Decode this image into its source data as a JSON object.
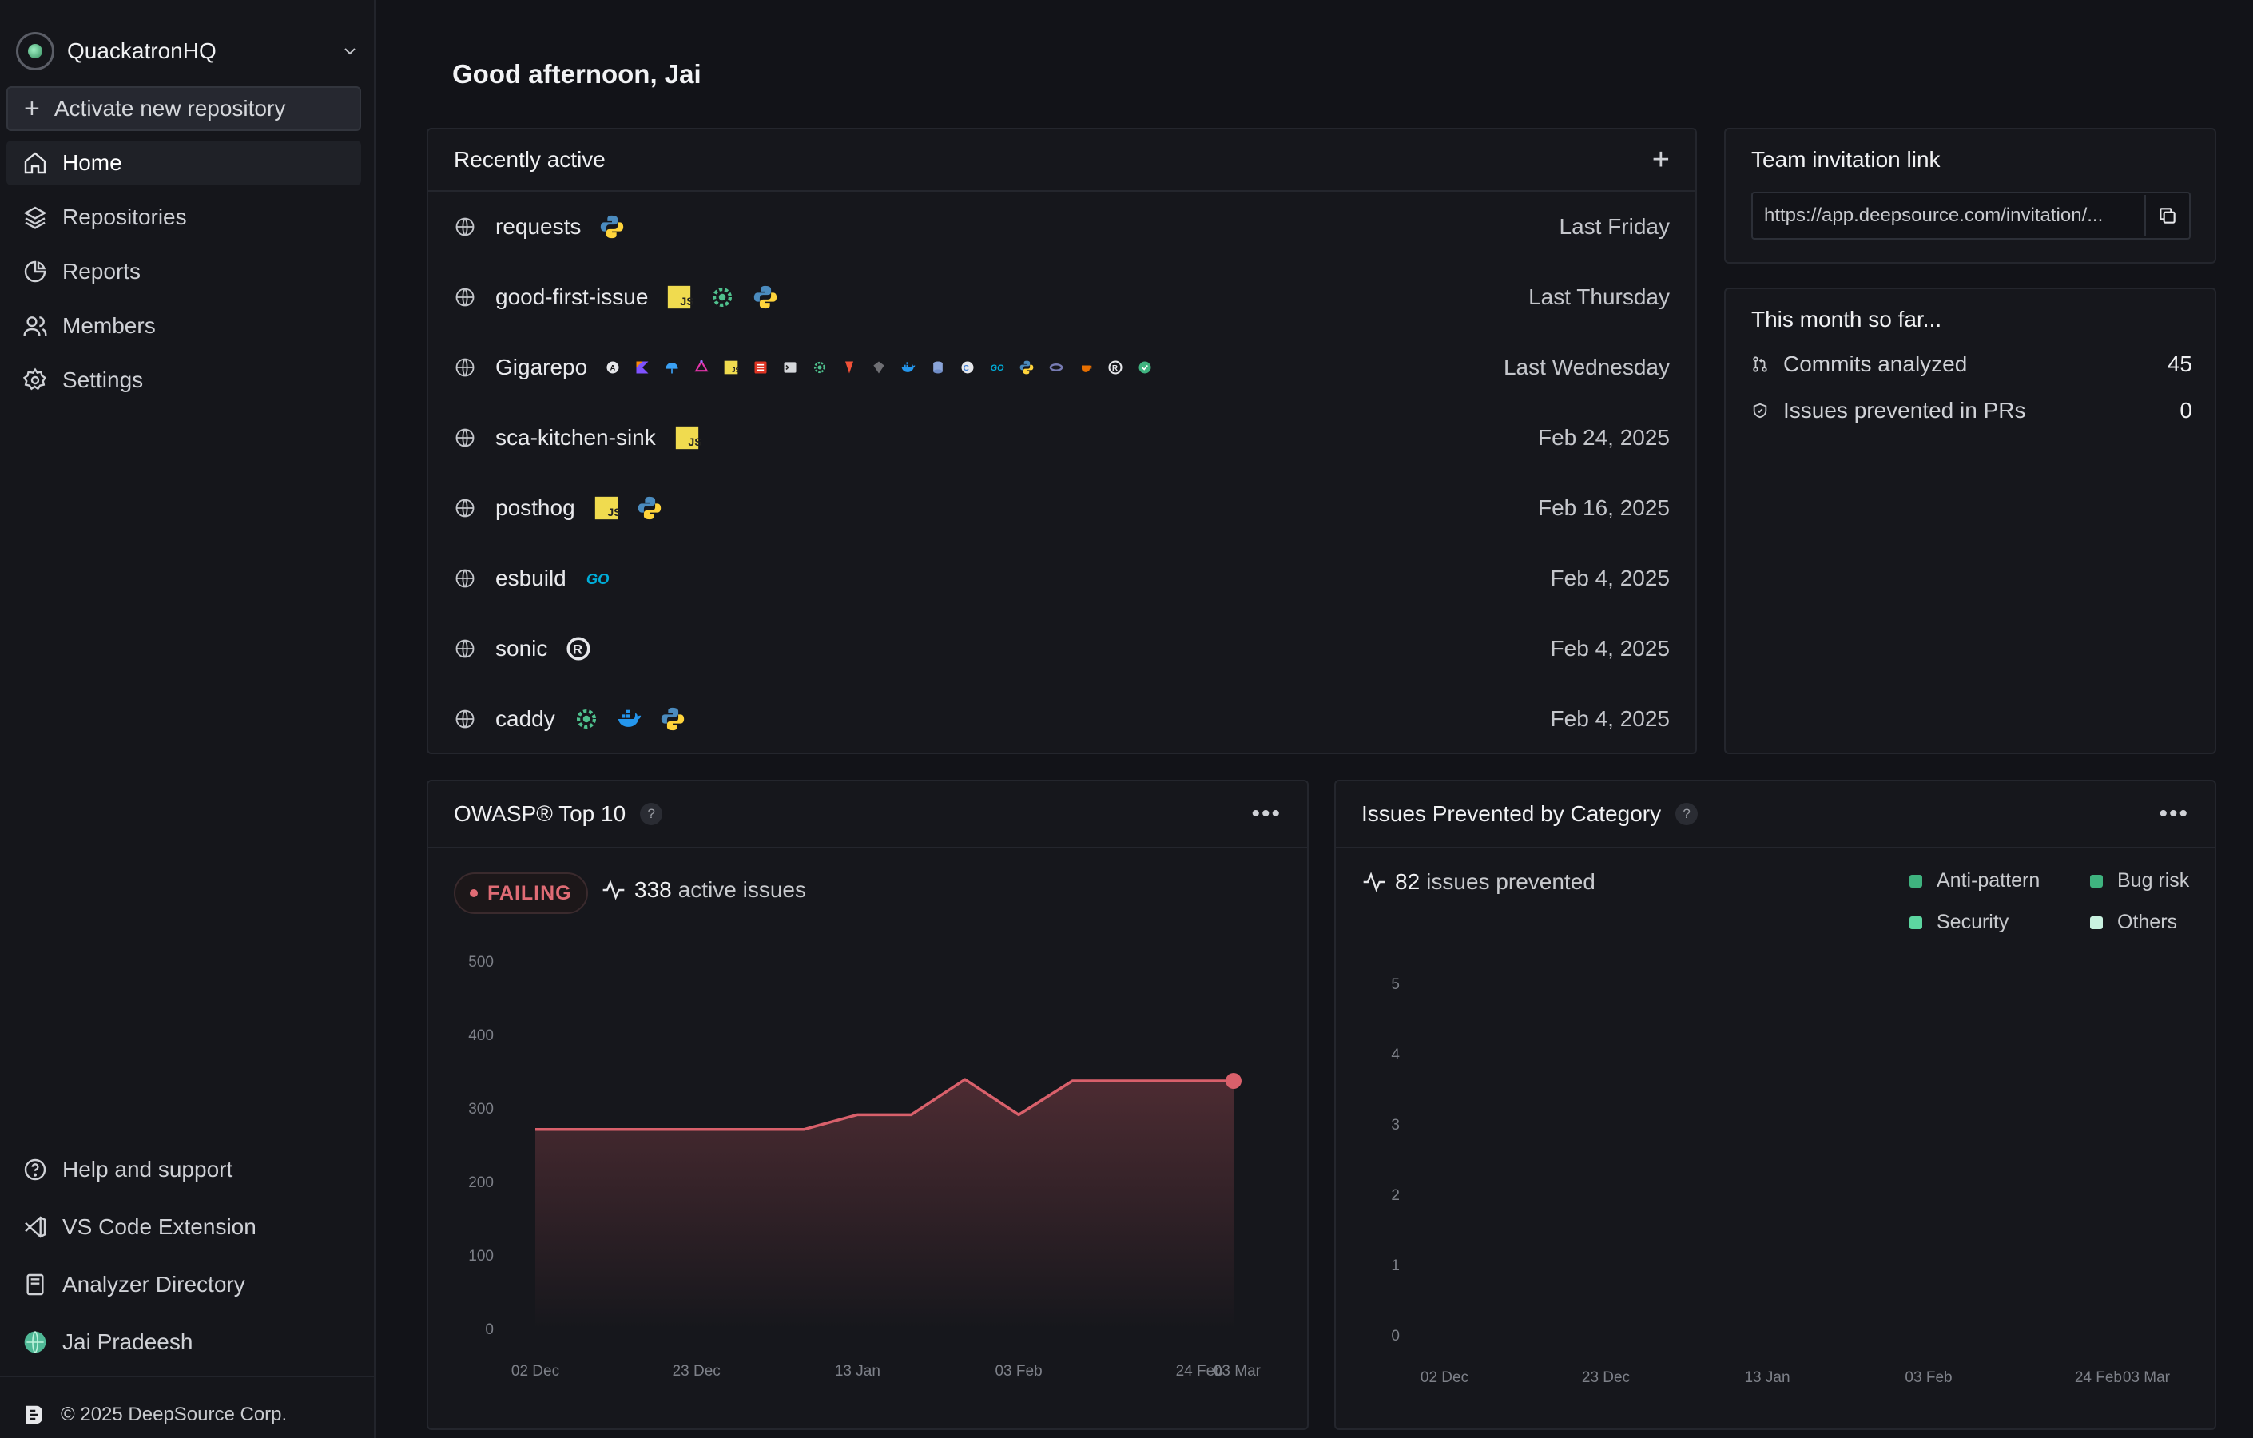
{
  "sidebar": {
    "org_name": "QuackatronHQ",
    "activate_label": "Activate new repository",
    "nav": [
      {
        "label": "Home",
        "icon": "home-icon"
      },
      {
        "label": "Repositories",
        "icon": "layers-icon"
      },
      {
        "label": "Reports",
        "icon": "pie-chart-icon"
      },
      {
        "label": "Members",
        "icon": "users-icon"
      },
      {
        "label": "Settings",
        "icon": "gear-icon"
      }
    ],
    "bottom_nav": [
      {
        "label": "Help and support",
        "icon": "help-circle-icon"
      },
      {
        "label": "VS Code Extension",
        "icon": "vscode-icon"
      },
      {
        "label": "Analyzer Directory",
        "icon": "book-icon"
      },
      {
        "label": "Jai Pradeesh",
        "icon": "user-avatar-icon"
      }
    ],
    "copyright": "© 2025 DeepSource Corp."
  },
  "greeting": "Good afternoon, Jai",
  "recent": {
    "title": "Recently active",
    "repos": [
      {
        "name": "requests",
        "date": "Last Friday",
        "langs": [
          "python"
        ]
      },
      {
        "name": "good-first-issue",
        "date": "Last Thursday",
        "langs": [
          "javascript",
          "secrets",
          "python"
        ]
      },
      {
        "name": "Gigarepo",
        "date": "Last Wednesday",
        "langs": [
          "ansible",
          "kotlin",
          "terraform",
          "graphql",
          "javascript",
          "scala",
          "shell",
          "secrets",
          "swift",
          "ruby",
          "docker",
          "sql",
          "csharp",
          "go",
          "python",
          "php",
          "java",
          "rust",
          "test-coverage"
        ]
      },
      {
        "name": "sca-kitchen-sink",
        "date": "Feb 24, 2025",
        "langs": [
          "javascript"
        ]
      },
      {
        "name": "posthog",
        "date": "Feb 16, 2025",
        "langs": [
          "javascript",
          "python"
        ]
      },
      {
        "name": "esbuild",
        "date": "Feb 4, 2025",
        "langs": [
          "go"
        ]
      },
      {
        "name": "sonic",
        "date": "Feb 4, 2025",
        "langs": [
          "rust"
        ]
      },
      {
        "name": "caddy",
        "date": "Feb 4, 2025",
        "langs": [
          "secrets",
          "docker",
          "python"
        ]
      }
    ]
  },
  "team": {
    "title": "Team invitation link",
    "link": "https://app.deepsource.com/invitation/..."
  },
  "month": {
    "title": "This month so far...",
    "stats": [
      {
        "label": "Commits analyzed",
        "value": "45",
        "icon": "git-pull-request-icon"
      },
      {
        "label": "Issues prevented in PRs",
        "value": "0",
        "icon": "shield-icon"
      }
    ]
  },
  "owasp": {
    "title": "OWASP® Top 10",
    "help": "?",
    "status": "FAILING",
    "active_count": "338",
    "active_label": "active issues"
  },
  "issues_prevented": {
    "title": "Issues Prevented by Category",
    "help": "?",
    "count": "82",
    "count_label": "issues prevented",
    "legend": [
      {
        "label": "Anti-pattern",
        "color": "#3fb37f"
      },
      {
        "label": "Bug risk",
        "color": "#3fb37f"
      },
      {
        "label": "Security",
        "color": "#5cd6a0"
      },
      {
        "label": "Others",
        "color": "#c9f2e0"
      }
    ]
  },
  "chart_data": [
    {
      "type": "area",
      "x": [
        "02 Dec",
        "09 Dec",
        "16 Dec",
        "23 Dec",
        "30 Dec",
        "06 Jan",
        "13 Jan",
        "20 Jan",
        "27 Jan",
        "03 Feb",
        "10 Feb",
        "17 Feb",
        "24 Feb",
        "03 Mar"
      ],
      "x_tick_labels": [
        "02 Dec",
        "23 Dec",
        "13 Jan",
        "03 Feb",
        "24 Feb",
        "03 Mar"
      ],
      "series": [
        {
          "values": [
            272,
            272,
            272,
            272,
            272,
            272,
            292,
            292,
            340,
            292,
            338,
            338,
            338,
            338
          ],
          "color": "#d9606b"
        }
      ],
      "ylim": [
        0,
        500
      ],
      "yticks": [
        0,
        100,
        200,
        300,
        400,
        500
      ],
      "grid": false
    },
    {
      "type": "bar",
      "x_tick_labels": [
        "02 Dec",
        "23 Dec",
        "13 Jan",
        "03 Feb",
        "24 Feb",
        "03 Mar"
      ],
      "series": [],
      "ylim": [
        0,
        5
      ],
      "yticks": [
        0,
        1,
        2,
        3,
        4,
        5
      ],
      "legend_position": "top-right",
      "grid": false
    }
  ]
}
